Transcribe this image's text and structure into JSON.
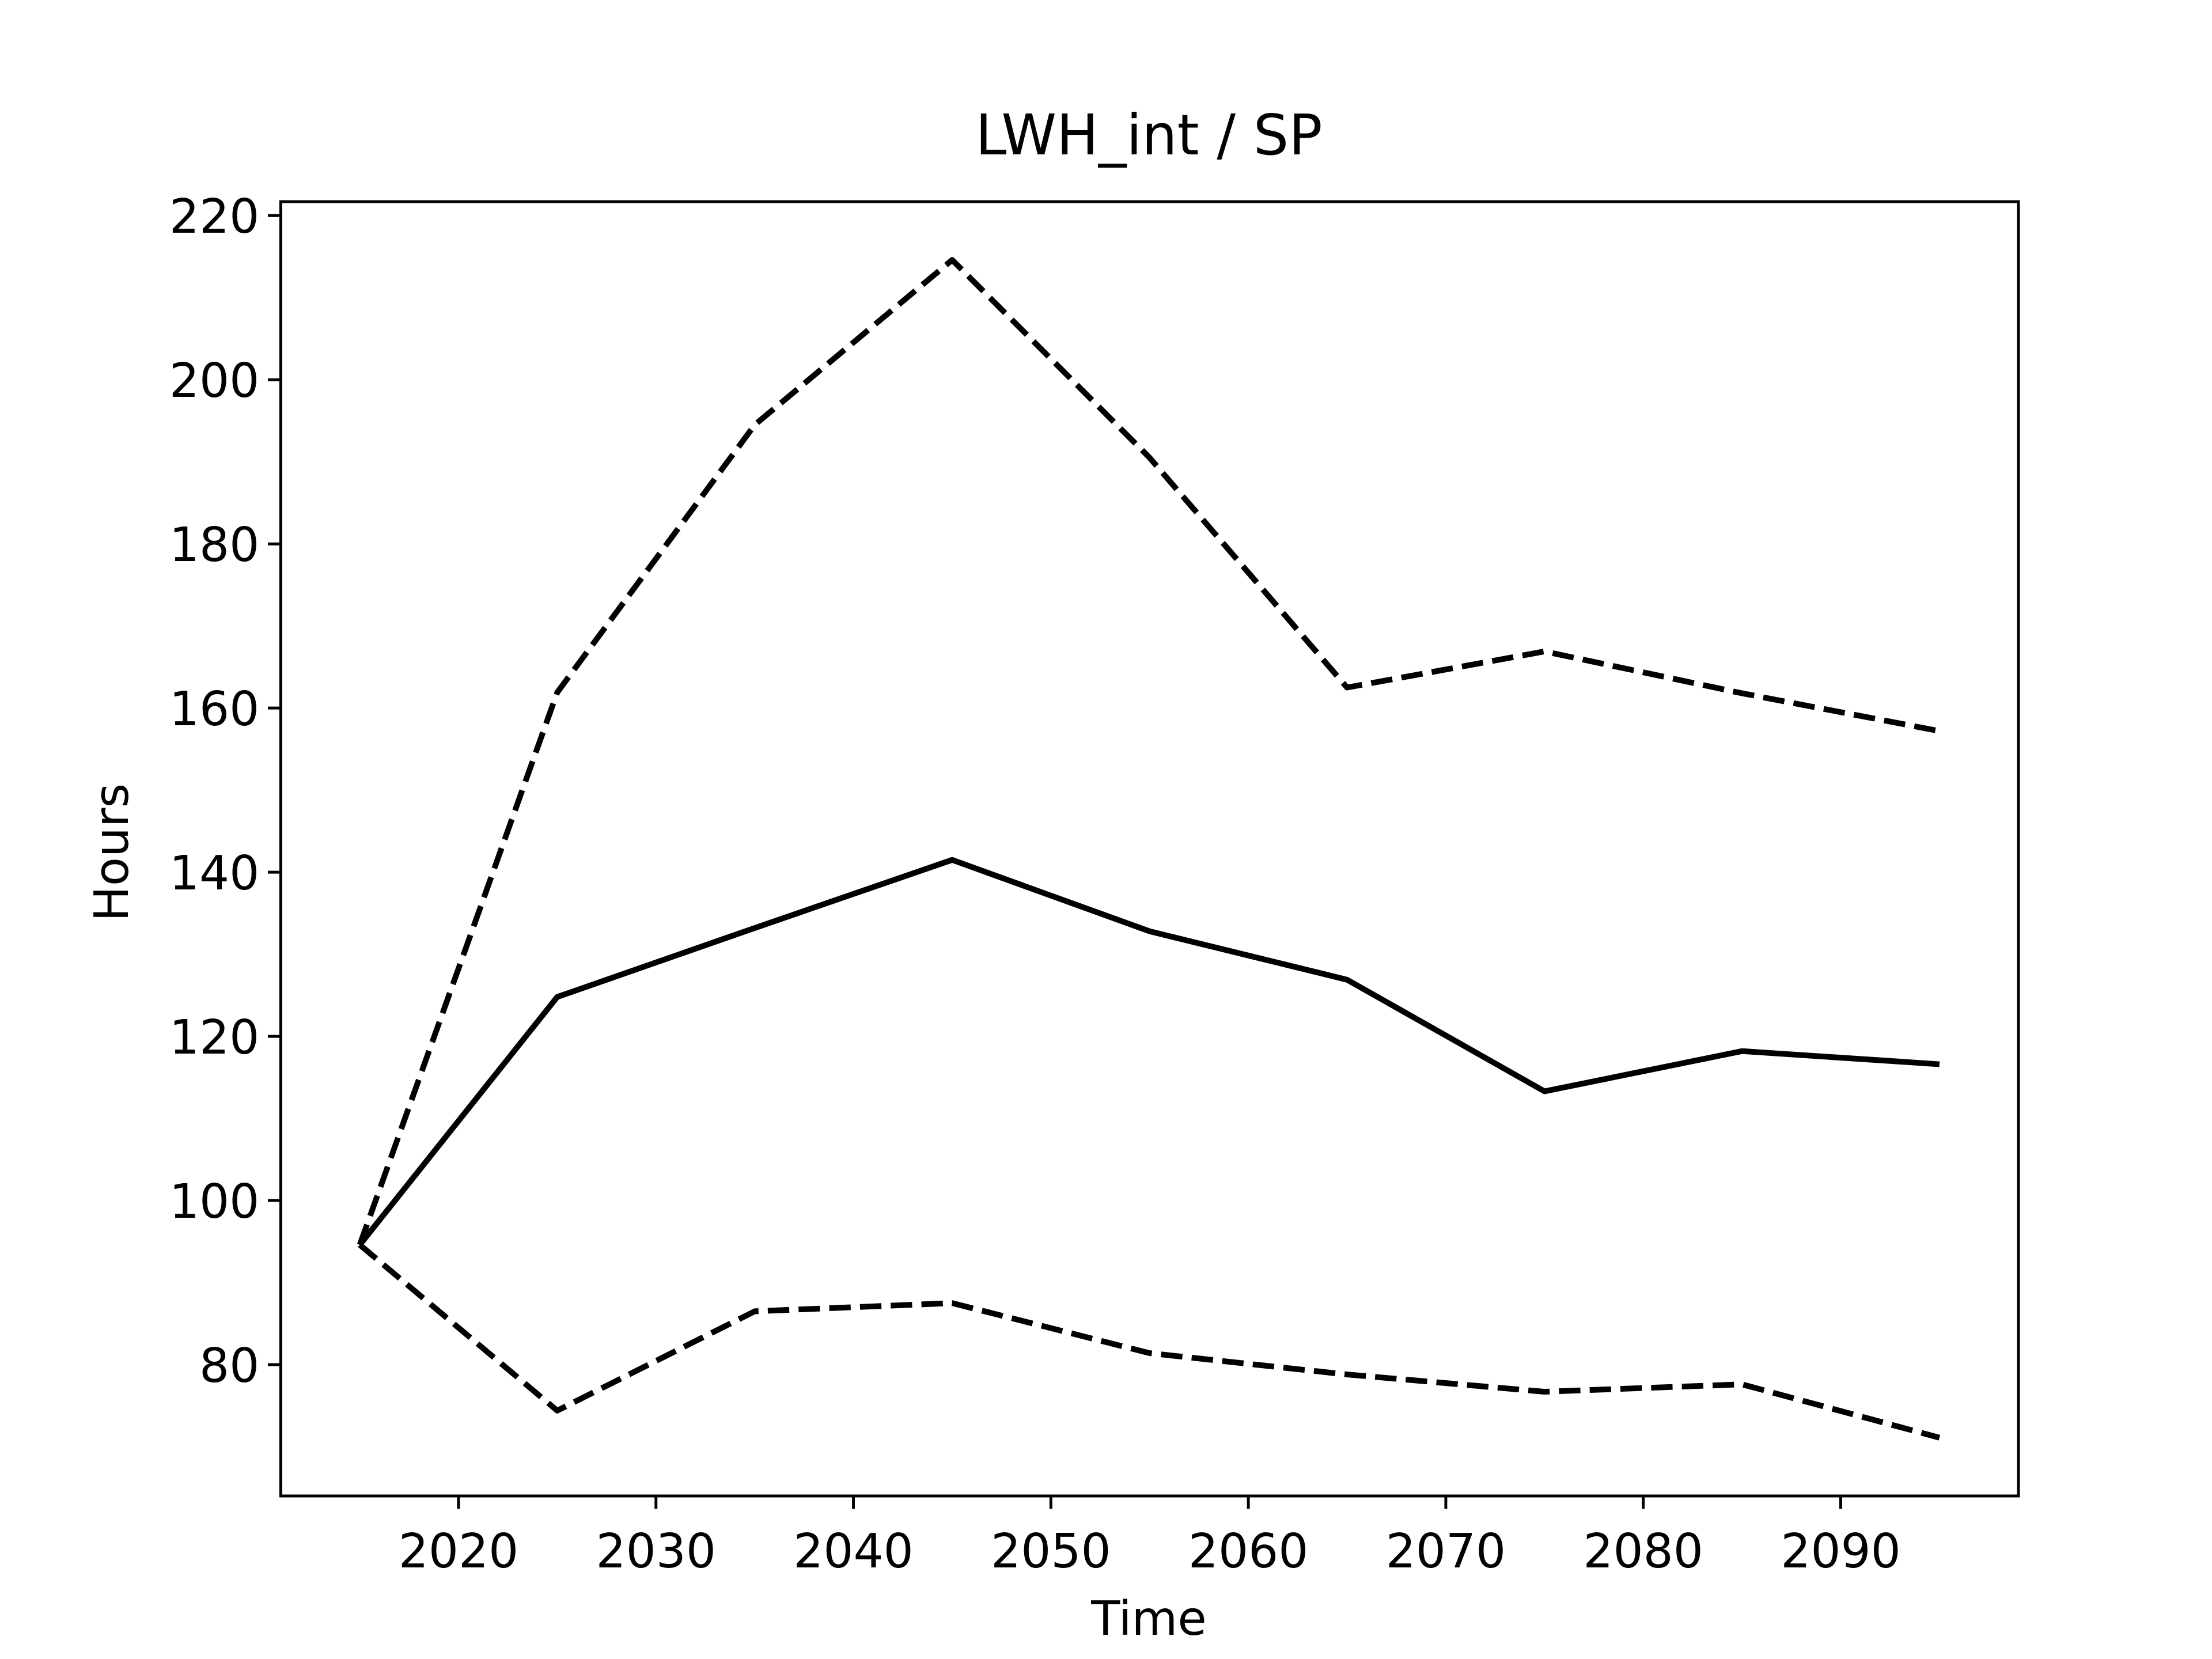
{
  "chart_data": {
    "type": "line",
    "title": "LWH_int / SP",
    "x_label": "Time",
    "y_label": "Hours",
    "x": [
      2015,
      2025,
      2035,
      2045,
      2055,
      2065,
      2075,
      2085,
      2095
    ],
    "series": [
      {
        "color": "#000000",
        "linestyle": "solid",
        "values": [
          94.6,
          124.8,
          133.2,
          141.5,
          132.8,
          126.9,
          113.3,
          118.2,
          116.6
        ]
      },
      {
        "color": "#000000",
        "linestyle": "dashed",
        "values": [
          94.6,
          161.9,
          194.5,
          214.6,
          190.5,
          162.5,
          166.9,
          161.8,
          157.2
        ]
      },
      {
        "color": "#000000",
        "linestyle": "dashed",
        "values": [
          94.6,
          74.4,
          86.5,
          87.5,
          81.4,
          78.8,
          76.7,
          77.6,
          71.1
        ]
      }
    ],
    "xlim": [
      2011,
      2099
    ],
    "xticks": [
      2020,
      2030,
      2040,
      2050,
      2060,
      2070,
      2080,
      2090
    ],
    "ylim": [
      64,
      221.7
    ],
    "yticks": [
      80,
      100,
      120,
      140,
      160,
      180,
      200,
      220
    ],
    "grid": false
  }
}
